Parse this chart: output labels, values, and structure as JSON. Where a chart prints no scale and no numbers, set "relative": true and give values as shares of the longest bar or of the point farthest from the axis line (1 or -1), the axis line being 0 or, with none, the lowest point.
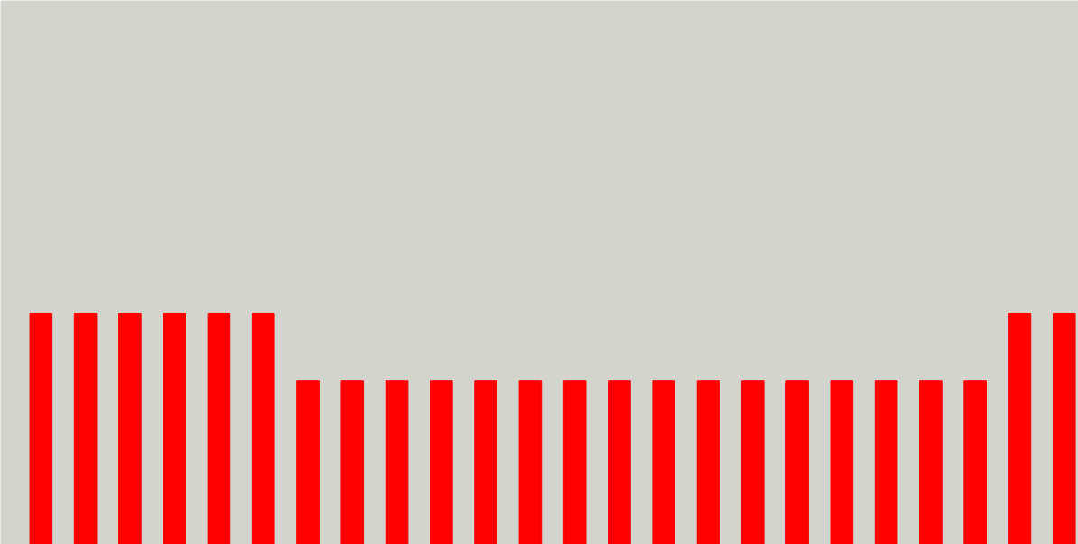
{
  "chart_data": {
    "type": "bar",
    "relative": true,
    "categories": [
      null,
      null,
      null,
      null,
      null,
      null,
      null,
      null,
      null,
      null,
      null,
      null,
      null,
      null,
      null,
      null,
      null,
      null,
      null,
      null,
      null,
      null,
      null,
      null
    ],
    "values": [
      1,
      1,
      1,
      1,
      1,
      1,
      0.71,
      0.71,
      0.71,
      0.71,
      0.71,
      0.71,
      0.71,
      0.71,
      0.71,
      0.71,
      0.71,
      0.71,
      0.71,
      0.71,
      0.71,
      0.71,
      1,
      1
    ],
    "color": "#ff0000",
    "tick_labels": false,
    "grid": false
  }
}
